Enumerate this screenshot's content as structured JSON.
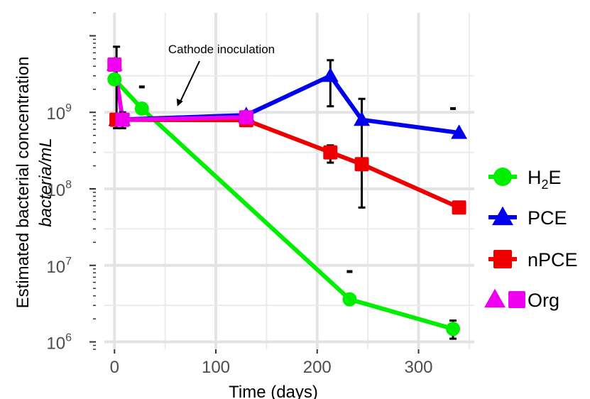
{
  "chart_data": {
    "type": "line",
    "xlabel": "Time (days)",
    "ylabel_line1": "Estimated bacterial concentration",
    "ylabel_line2": "bacteria/mL",
    "y_scale": "log10",
    "xlim": [
      -10,
      355
    ],
    "ylim": [
      800000,
      20000000000
    ],
    "x_ticks": [
      0,
      100,
      200,
      300
    ],
    "y_ticks": [
      {
        "value": 1000000,
        "base": "10",
        "exp": "6"
      },
      {
        "value": 10000000,
        "base": "10",
        "exp": "7"
      },
      {
        "value": 100000000,
        "base": "10",
        "exp": "8"
      },
      {
        "value": 1000000000,
        "base": "10",
        "exp": "9"
      }
    ],
    "grid": true,
    "legend_position": "right",
    "annotation": {
      "text": "Cathode inoculation",
      "arrow_to": {
        "x": 62,
        "y": 1200000000
      }
    },
    "series": [
      {
        "name": "H2E",
        "legend_base": "H",
        "legend_sub": "2",
        "legend_rest": "E",
        "color": "#00ee00",
        "marker": "circle",
        "points": [
          {
            "x": 0,
            "y": 2700000000
          },
          {
            "x": 27,
            "y": 1120000000
          },
          {
            "x": 232,
            "y": 3600000
          },
          {
            "x": 334,
            "y": 1480000,
            "err": [
              1100000,
              1900000
            ]
          }
        ]
      },
      {
        "name": "PCE",
        "color": "#0000ee",
        "marker": "triangle",
        "points": [
          {
            "x": 2,
            "y": 800000000,
            "err": [
              620000000,
              7200000000
            ]
          },
          {
            "x": 130,
            "y": 920000000
          },
          {
            "x": 213,
            "y": 3000000000,
            "err": [
              1200000000,
              4800000000
            ]
          },
          {
            "x": 244,
            "y": 800000000
          },
          {
            "x": 340,
            "y": 540000000
          }
        ]
      },
      {
        "name": "nPCE",
        "color": "#ee0000",
        "marker": "square",
        "points": [
          {
            "x": 2,
            "y": 800000000
          },
          {
            "x": 130,
            "y": 790000000,
            "err": [
              670000000,
              930000000
            ]
          },
          {
            "x": 213,
            "y": 300000000,
            "err": [
              220000000,
              370000000
            ]
          },
          {
            "x": 244,
            "y": 210000000,
            "err": [
              57000000,
              1500000000
            ]
          },
          {
            "x": 340,
            "y": 57000000,
            "err": [
              52000000,
              63000000
            ]
          }
        ]
      },
      {
        "name": "Org",
        "color": "#ee00ee",
        "marker": "triangle+square",
        "points": [
          {
            "x": 0,
            "y": 4200000000
          },
          {
            "x": 8,
            "y": 800000000,
            "err": [
              620000000,
              1000000000
            ]
          },
          {
            "x": 130,
            "y": 860000000
          }
        ]
      }
    ],
    "dash_markers": [
      {
        "x": 27,
        "y": 2150000000
      },
      {
        "x": 232,
        "y": 8300000
      },
      {
        "x": 334,
        "y": 1120000000
      }
    ]
  }
}
